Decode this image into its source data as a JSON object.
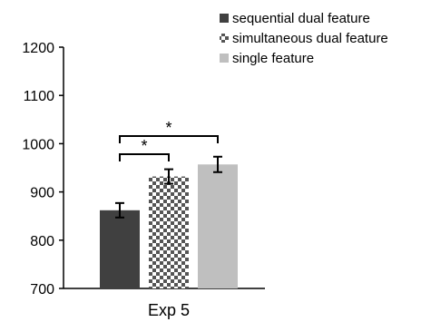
{
  "chart_data": {
    "type": "bar",
    "title": "",
    "xlabel": "",
    "ylabel": "",
    "categories": [
      "Exp 5"
    ],
    "ylim": [
      700,
      1200
    ],
    "yticks": [
      700,
      800,
      900,
      1000,
      1100,
      1200
    ],
    "grid": false,
    "legend_position": "top-right",
    "series": [
      {
        "name": "sequential dual feature",
        "values": [
          862
        ],
        "error": [
          15
        ],
        "color": "#404040",
        "pattern": "solid"
      },
      {
        "name": "simultaneous dual feature",
        "values": [
          932
        ],
        "error": [
          15
        ],
        "color": "#555555",
        "pattern": "checker"
      },
      {
        "name": "single feature",
        "values": [
          957
        ],
        "error": [
          16
        ],
        "color": "#bfbfbf",
        "pattern": "solid"
      }
    ],
    "significance": [
      {
        "from_series": 0,
        "to_series": 1,
        "label": "*"
      },
      {
        "from_series": 0,
        "to_series": 2,
        "label": "*"
      }
    ]
  }
}
